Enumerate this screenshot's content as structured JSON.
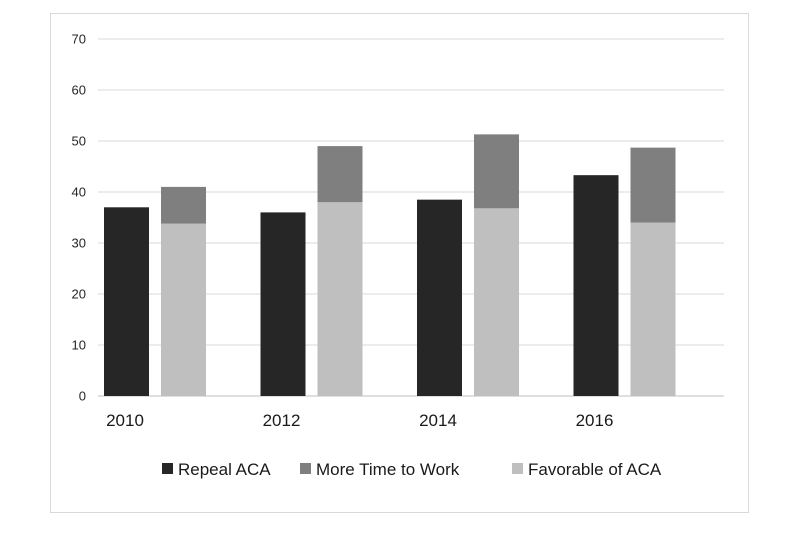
{
  "chart_data": {
    "type": "bar",
    "stacked_second_column": true,
    "categories": [
      "2010",
      "2012",
      "2014",
      "2016"
    ],
    "series": [
      {
        "name": "Repeal ACA",
        "values": [
          37,
          36,
          38.5,
          43.3
        ],
        "color": "#262626"
      },
      {
        "name": "More Time to Work",
        "values": [
          7.2,
          11,
          14.5,
          14.7
        ],
        "color": "#7f7f7f"
      },
      {
        "name": "Favorable of ACA",
        "values": [
          33.8,
          38,
          36.8,
          34
        ],
        "color": "#bfbfbf"
      }
    ],
    "yticks": [
      "0",
      "10",
      "20",
      "30",
      "40",
      "50",
      "60",
      "70"
    ],
    "ylim": [
      0,
      70
    ],
    "grid": true,
    "legend_position": "bottom"
  }
}
